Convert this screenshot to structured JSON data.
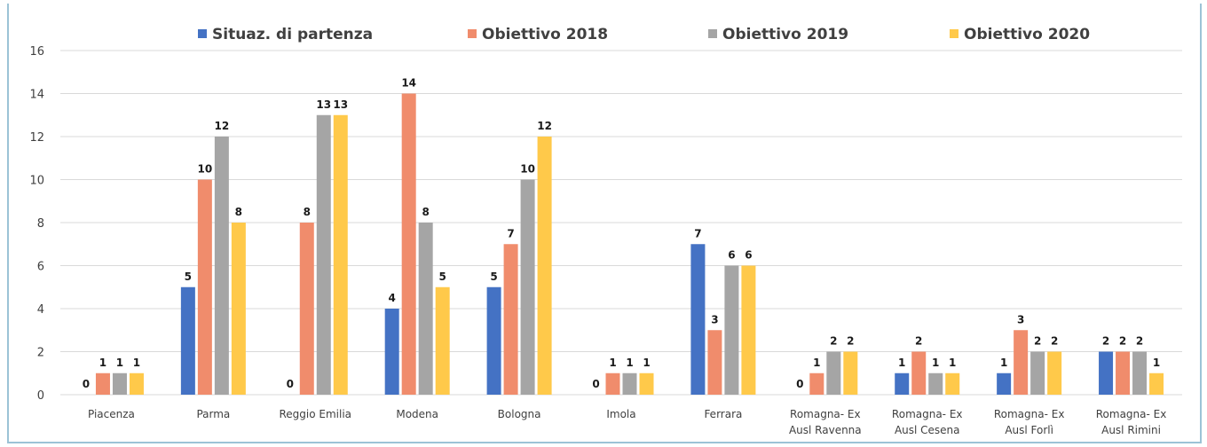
{
  "chart_data": {
    "type": "bar",
    "categories": [
      [
        "Piacenza"
      ],
      [
        "Parma"
      ],
      [
        "Reggio Emilia"
      ],
      [
        "Modena"
      ],
      [
        "Bologna"
      ],
      [
        "Imola"
      ],
      [
        "Ferrara"
      ],
      [
        "Romagna- Ex",
        "Ausl Ravenna"
      ],
      [
        "Romagna- Ex",
        "Ausl Cesena"
      ],
      [
        "Romagna- Ex",
        "Ausl Forlì"
      ],
      [
        "Romagna- Ex",
        "Ausl Rimini"
      ]
    ],
    "series": [
      {
        "name": "Situaz. di partenza",
        "color": "#4472c4",
        "values": [
          0,
          5,
          0,
          4,
          5,
          0,
          7,
          0,
          1,
          1,
          2
        ]
      },
      {
        "name": "Obiettivo 2018",
        "color": "#f08c6c",
        "values": [
          1,
          10,
          8,
          14,
          7,
          1,
          3,
          1,
          2,
          3,
          2
        ]
      },
      {
        "name": "Obiettivo 2019",
        "color": "#a5a5a5",
        "values": [
          1,
          12,
          13,
          8,
          10,
          1,
          6,
          2,
          1,
          2,
          2
        ]
      },
      {
        "name": "Obiettivo 2020",
        "color": "#ffc94a",
        "values": [
          1,
          8,
          13,
          5,
          12,
          1,
          6,
          2,
          1,
          2,
          1
        ]
      }
    ],
    "ylim": [
      0,
      16
    ],
    "yticks": [
      "0",
      "2",
      "4",
      "6",
      "8",
      "10",
      "12",
      "14",
      "16"
    ],
    "grid": true,
    "legend": "top",
    "title": "",
    "xlabel": "",
    "ylabel": ""
  }
}
